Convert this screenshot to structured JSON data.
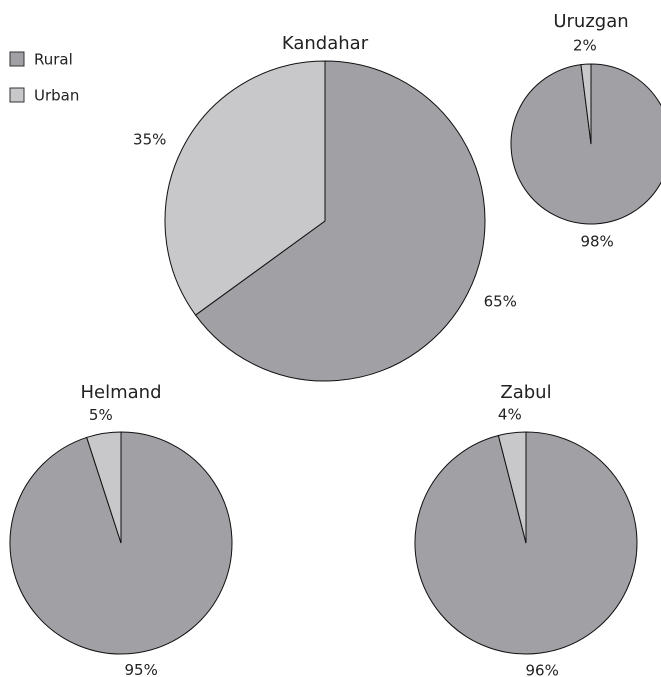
{
  "chart_data": [
    {
      "type": "pie",
      "title": "Kandahar",
      "categories": [
        "Rural",
        "Urban"
      ],
      "values": [
        65,
        35
      ],
      "value_labels": [
        "65%",
        "35%"
      ],
      "colors": [
        "#a0a0a5",
        "#c8c8ca"
      ]
    },
    {
      "type": "pie",
      "title": "Uruzgan",
      "categories": [
        "Rural",
        "Urban"
      ],
      "values": [
        98,
        2
      ],
      "value_labels": [
        "98%",
        "2%"
      ],
      "colors": [
        "#a0a0a5",
        "#c8c8ca"
      ]
    },
    {
      "type": "pie",
      "title": "Helmand",
      "categories": [
        "Rural",
        "Urban"
      ],
      "values": [
        95,
        5
      ],
      "value_labels": [
        "95%",
        "5%"
      ],
      "colors": [
        "#a0a0a5",
        "#c8c8ca"
      ]
    },
    {
      "type": "pie",
      "title": "Zabul",
      "categories": [
        "Rural",
        "Urban"
      ],
      "values": [
        96,
        4
      ],
      "value_labels": [
        "96%",
        "4%"
      ],
      "colors": [
        "#a0a0a5",
        "#c8c8ca"
      ]
    }
  ]
}
